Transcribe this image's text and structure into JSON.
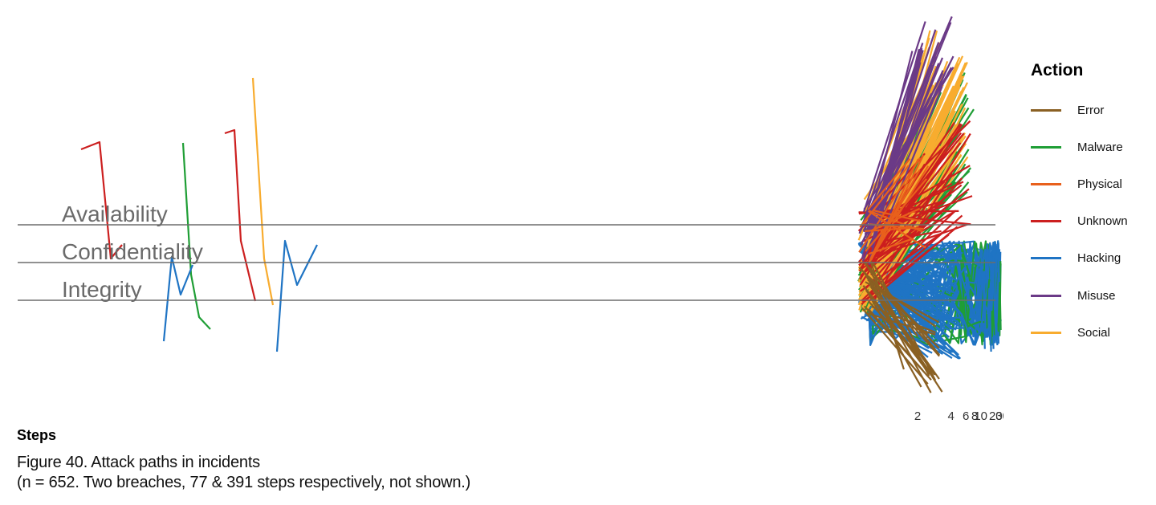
{
  "chart_data": {
    "type": "line",
    "xlabel": "Steps",
    "x_ticks": [
      30,
      20,
      10,
      8,
      6,
      4,
      2
    ],
    "bands": [
      "Availability",
      "Confidentiality",
      "Integrity"
    ],
    "caption_line1": "Figure 40. Attack paths in incidents",
    "caption_line2": "(n = 652.  Two breaches, 77 & 391 steps respectively, not shown.)",
    "legend": {
      "title": "Action",
      "placement": "right",
      "entries": [
        {
          "name": "Error",
          "color": "#8a6023"
        },
        {
          "name": "Malware",
          "color": "#1f9e35"
        },
        {
          "name": "Physical",
          "color": "#e8601c"
        },
        {
          "name": "Unknown",
          "color": "#cc1f1f"
        },
        {
          "name": "Hacking",
          "color": "#1f74c4"
        },
        {
          "name": "Misuse",
          "color": "#6b3a87"
        },
        {
          "name": "Social",
          "color": "#f8ac2f"
        }
      ]
    }
  }
}
